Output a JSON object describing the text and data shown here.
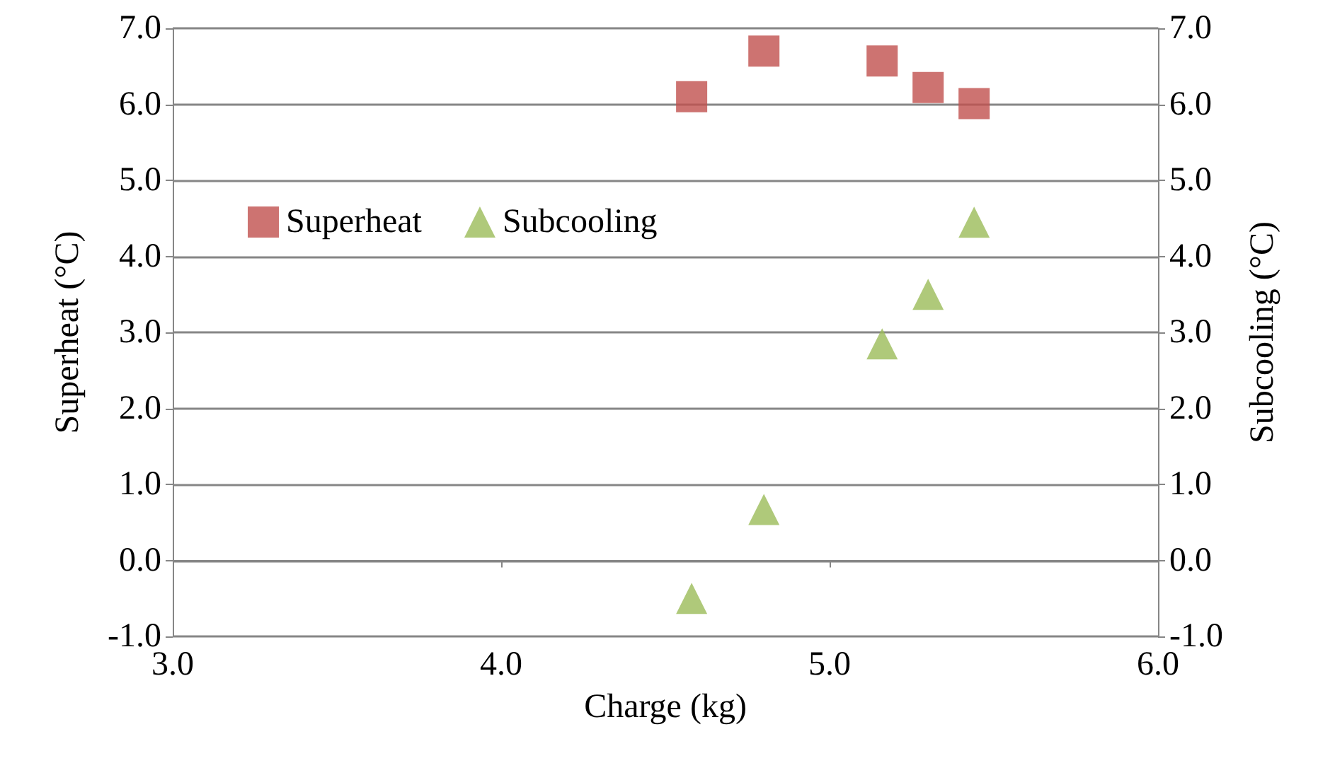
{
  "chart_data": {
    "type": "scatter",
    "xlabel": "Charge (kg)",
    "ylabel": "Superheat (°C)",
    "y2label": "Subcooling (°C)",
    "xlim": [
      3.0,
      6.0
    ],
    "xticks": [
      {
        "value": 3,
        "label": "3.0"
      },
      {
        "value": 4,
        "label": "4.0"
      },
      {
        "value": 5,
        "label": "5.0"
      },
      {
        "value": 6,
        "label": "6.0"
      }
    ],
    "ylim": [
      -1.0,
      7.0
    ],
    "yticks": [
      {
        "value": -1,
        "label": "-1.0"
      },
      {
        "value": 0,
        "label": "0.0"
      },
      {
        "value": 1,
        "label": "1.0"
      },
      {
        "value": 2,
        "label": "2.0"
      },
      {
        "value": 3,
        "label": "3.0"
      },
      {
        "value": 4,
        "label": "4.0"
      },
      {
        "value": 5,
        "label": "5.0"
      },
      {
        "value": 6,
        "label": "6.0"
      },
      {
        "value": 7,
        "label": "7.0"
      }
    ],
    "y2lim": [
      -1.0,
      7.0
    ],
    "y2ticks": [
      {
        "value": -1,
        "label": "-1.0"
      },
      {
        "value": 0,
        "label": "0.0"
      },
      {
        "value": 1,
        "label": "1.0"
      },
      {
        "value": 2,
        "label": "2.0"
      },
      {
        "value": 3,
        "label": "3.0"
      },
      {
        "value": 4,
        "label": "4.0"
      },
      {
        "value": 5,
        "label": "5.0"
      },
      {
        "value": 6,
        "label": "6.0"
      },
      {
        "value": 7,
        "label": "7.0"
      }
    ],
    "x": [
      4.58,
      4.8,
      5.16,
      5.3,
      5.44
    ],
    "series": [
      {
        "name": "Superheat",
        "color": "#c0504d",
        "marker": "square",
        "values": [
          6.1,
          6.7,
          6.57,
          6.22,
          6.01
        ]
      },
      {
        "name": "Subcooling",
        "color": "#9bbb59",
        "marker": "triangle",
        "values": [
          -0.5,
          0.67,
          2.85,
          3.5,
          4.45
        ]
      }
    ],
    "grid": "y",
    "legend": "left"
  }
}
